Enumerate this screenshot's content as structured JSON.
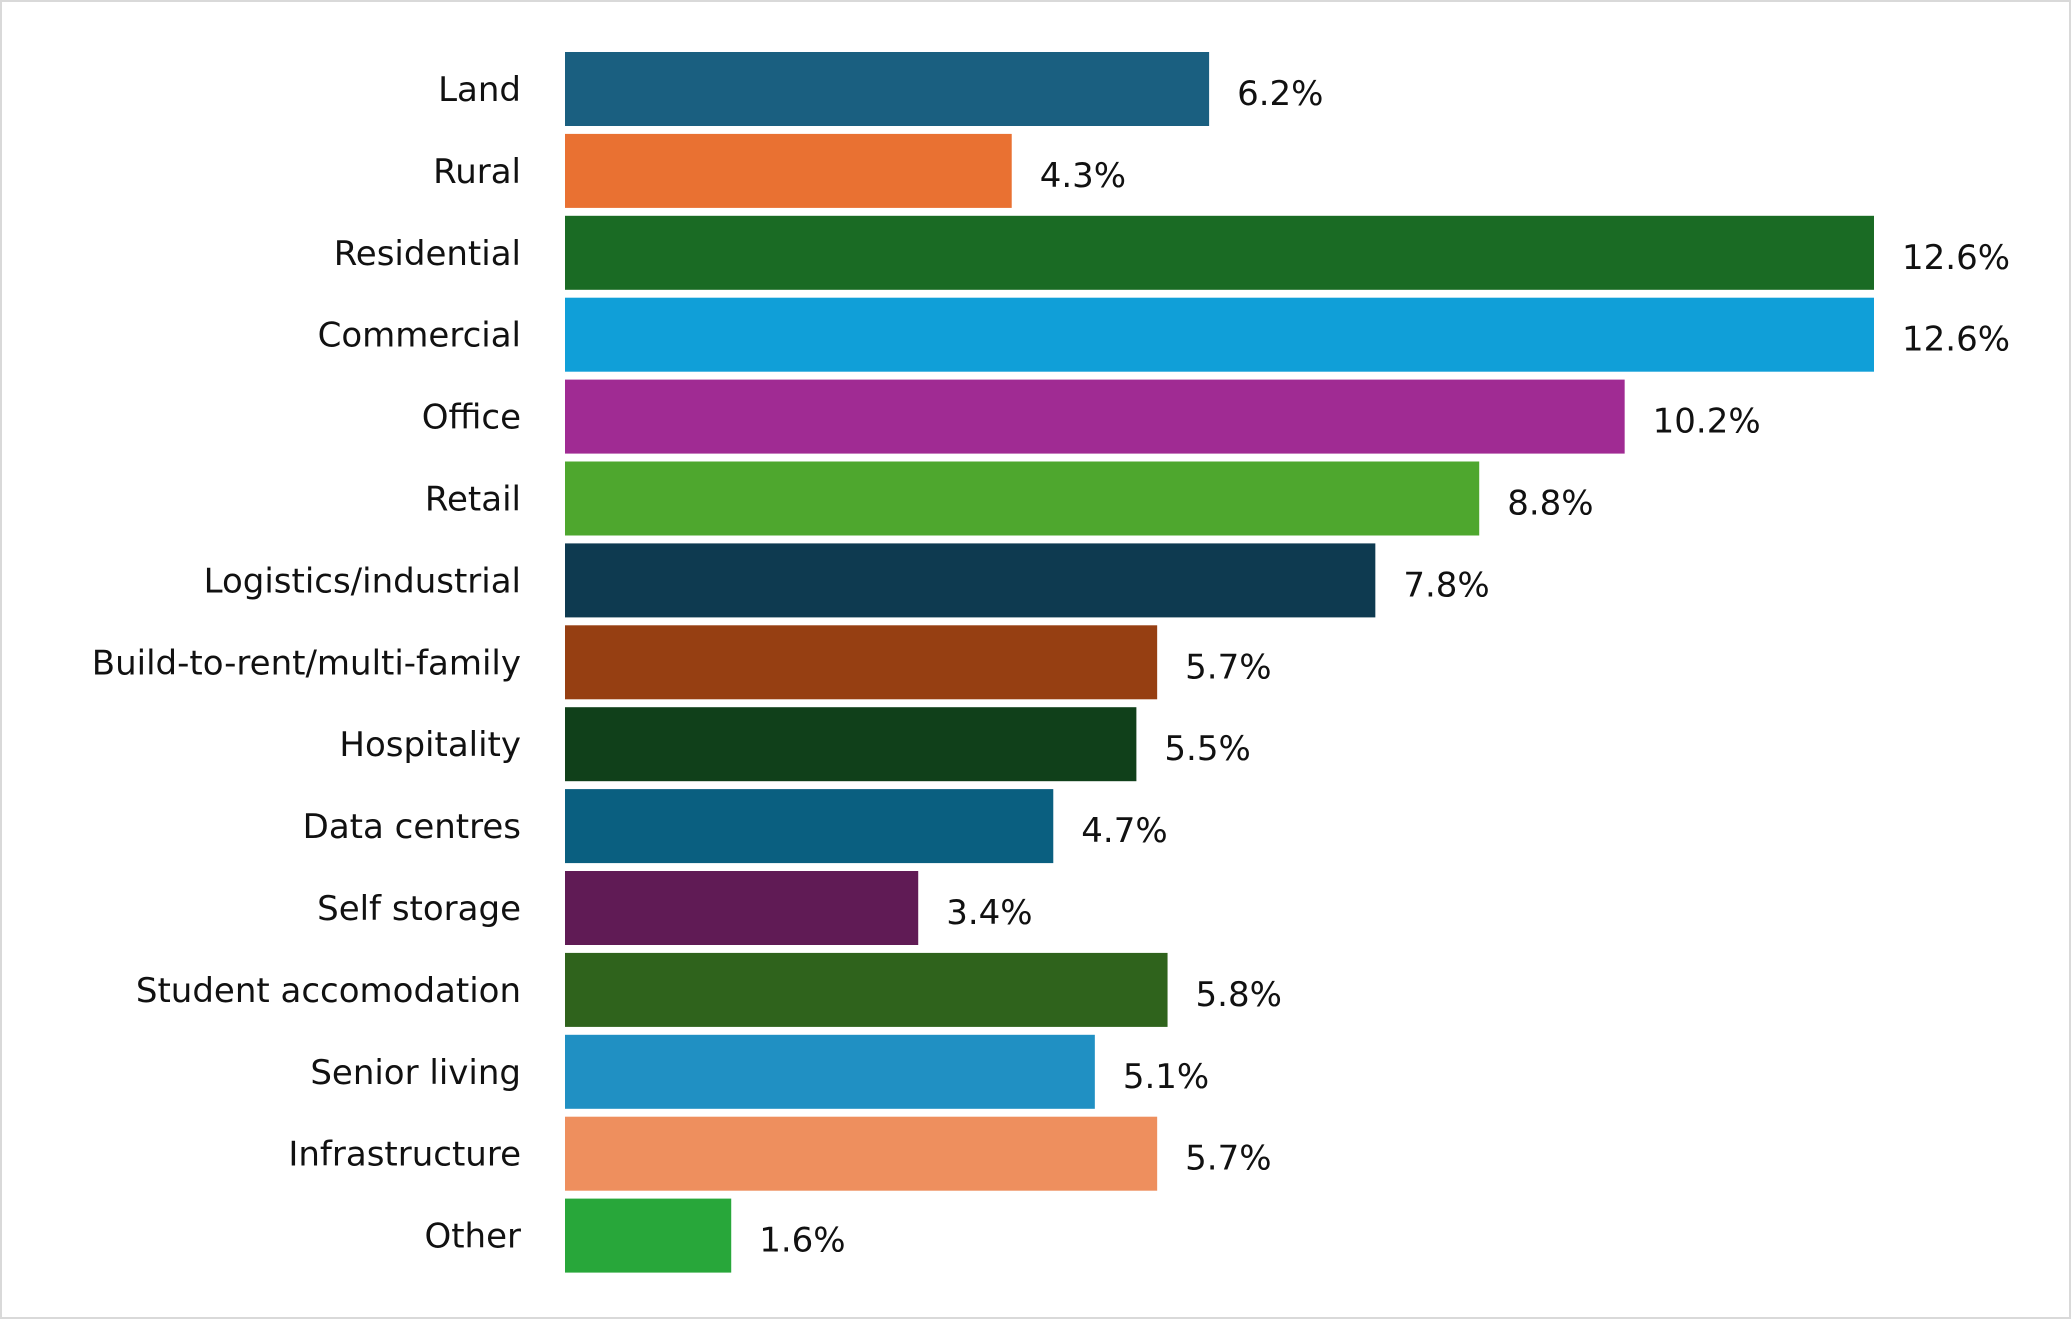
{
  "chart_data": {
    "type": "bar",
    "orientation": "horizontal",
    "categories": [
      "Land",
      "Rural",
      "Residential",
      "Commercial",
      "Office",
      "Retail",
      "Logistics/industrial",
      "Build-to-rent/multi-family",
      "Hospitality",
      "Data centres",
      "Self storage",
      "Student accomodation",
      "Senior living",
      "Infrastructure",
      "Other"
    ],
    "values": [
      6.2,
      4.3,
      12.6,
      12.6,
      10.2,
      8.8,
      7.8,
      5.7,
      5.5,
      4.7,
      3.4,
      5.8,
      5.1,
      5.7,
      1.6
    ],
    "data_labels": [
      "6.2%",
      "4.3%",
      "12.6%",
      "12.6%",
      "10.2%",
      "8.8%",
      "7.8%",
      "5.7%",
      "5.5%",
      "4.7%",
      "3.4%",
      "5.8%",
      "5.1%",
      "5.7%",
      "1.6%"
    ],
    "colors": [
      "#1a5f80",
      "#e97132",
      "#1a6b24",
      "#109fd8",
      "#a02b93",
      "#4ea72e",
      "#0e3a50",
      "#963f12",
      "#10401a",
      "#0a5f80",
      "#601b55",
      "#2f631c",
      "#2090c3",
      "#ee8f5e",
      "#28a73a"
    ],
    "title": "",
    "xlabel": "",
    "ylabel": "",
    "xlim": [
      0,
      12.6
    ],
    "grid": false,
    "legend": "none"
  }
}
